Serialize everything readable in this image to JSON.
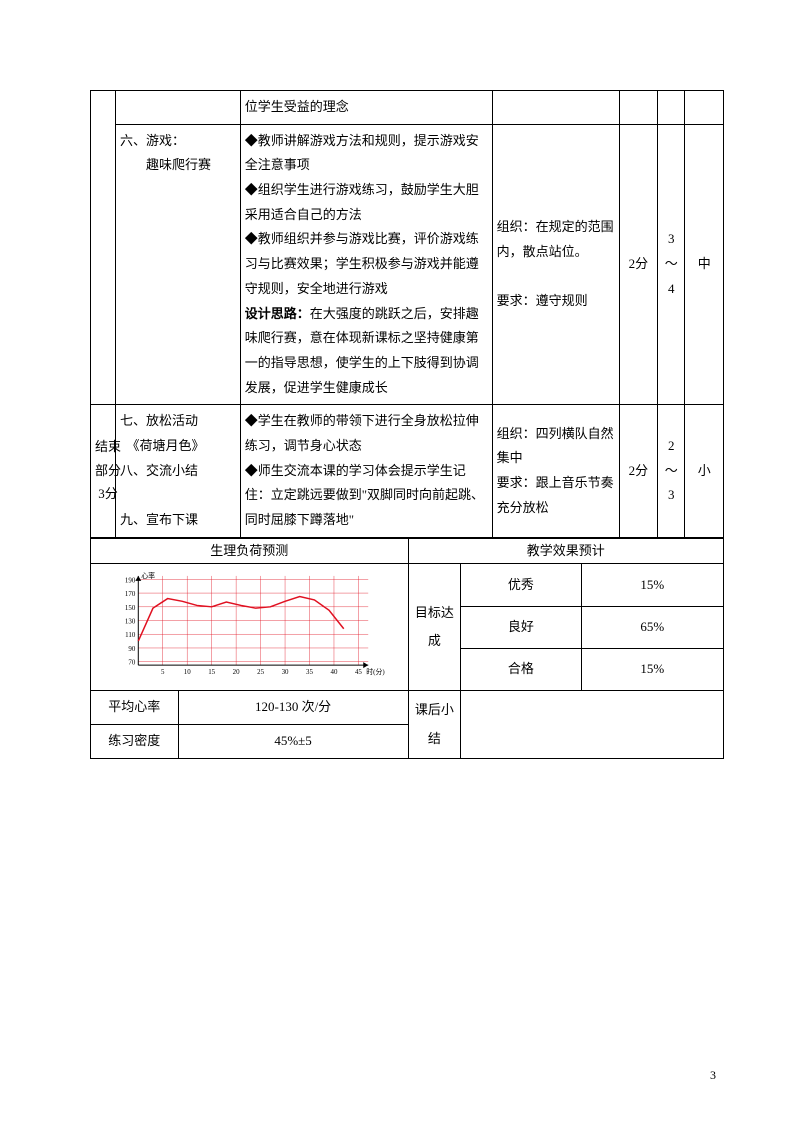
{
  "row0": {
    "content": "位学生受益的理念"
  },
  "row1": {
    "section": "六、游戏：\n　　趣味爬行赛",
    "content_lines": [
      "◆教师讲解游戏方法和规则，提示游戏安全注意事项",
      "◆组织学生进行游戏练习，鼓励学生大胆采用适合自己的方法",
      "◆教师组织并参与游戏比赛，评价游戏练习与比赛效果；学生积极参与游戏并能遵守规则，安全地进行游戏"
    ],
    "design_label": "设计思路：",
    "design_text": "在大强度的跳跃之后，安排趣味爬行赛，意在体现新课标之坚持健康第一的指导思想，使学生的上下肢得到协调发展，促进学生健康成长",
    "org_lines": [
      "组织：在规定的范围内，散点站位。",
      "",
      "要求：遵守规则"
    ],
    "time": "2分",
    "intensity": "3\n～\n4",
    "level": "中"
  },
  "row2": {
    "part_label": "结束部分　3分",
    "section_lines": [
      "七、放松活动",
      "　《荷塘月色》",
      "八、交流小结",
      "",
      "九、宣布下课"
    ],
    "content_lines": [
      "◆学生在教师的带领下进行全身放松拉伸练习，调节身心状态",
      "◆师生交流本课的学习体会提示学生记住：立定跳远要做到\"双脚同时向前起跳、同时屈膝下蹲落地\""
    ],
    "org_lines": [
      "组织：四列横队自然集中",
      "要求：跟上音乐节奏充分放松"
    ],
    "time": "2分",
    "intensity": "2\n～\n3",
    "level": "小"
  },
  "bottom": {
    "physio_header": "生理负荷预测",
    "effect_header": "教学效果预计",
    "goal_label": "目标达成",
    "postclass_label": "课后小结",
    "heart_rate_label": "平均心率",
    "heart_rate_value": "120-130 次/分",
    "density_label": "练习密度",
    "density_value": "45%±5",
    "effect_rows": [
      {
        "label": "优秀",
        "value": "15%"
      },
      {
        "label": "良好",
        "value": "65%"
      },
      {
        "label": "合格",
        "value": "15%"
      }
    ]
  },
  "chart": {
    "type": "line",
    "x_ticks": [
      5,
      10,
      15,
      20,
      25,
      30,
      35,
      40,
      45
    ],
    "y_ticks": [
      70,
      90,
      110,
      130,
      150,
      170,
      190
    ],
    "xlim": [
      0,
      47
    ],
    "ylim": [
      65,
      195
    ],
    "points": [
      [
        0,
        100
      ],
      [
        3,
        148
      ],
      [
        6,
        162
      ],
      [
        9,
        158
      ],
      [
        12,
        152
      ],
      [
        15,
        150
      ],
      [
        18,
        157
      ],
      [
        21,
        152
      ],
      [
        24,
        148
      ],
      [
        27,
        150
      ],
      [
        30,
        158
      ],
      [
        33,
        165
      ],
      [
        36,
        160
      ],
      [
        39,
        145
      ],
      [
        42,
        118
      ]
    ],
    "line_color": "#e01020",
    "grid_color": "#e01020",
    "axis_color": "#000000",
    "line_width": 1.5,
    "grid_width": 0.4,
    "background": "#ffffff",
    "tick_fontsize": 7,
    "y_axis_label": "心率",
    "x_axis_label": "时(分)"
  },
  "page_number": "3"
}
